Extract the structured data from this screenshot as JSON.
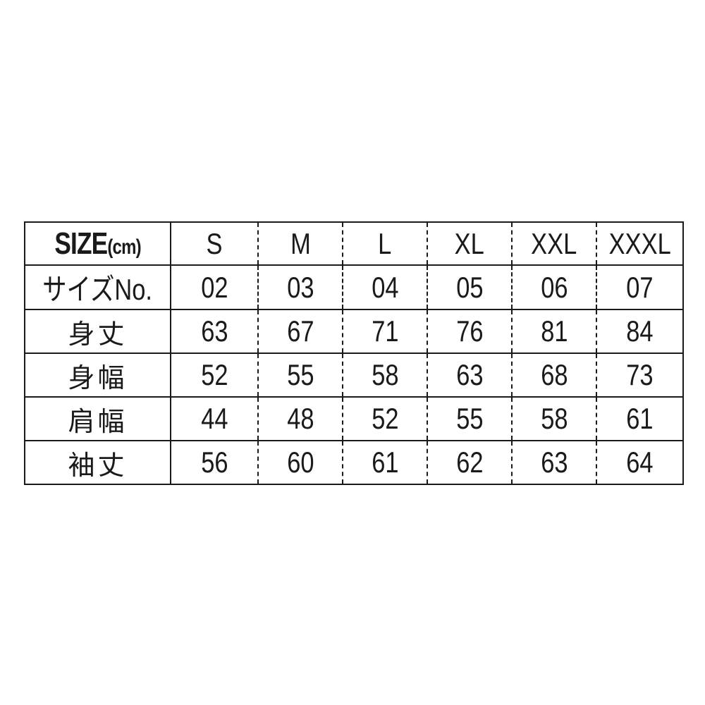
{
  "header": {
    "label_main": "SIZE",
    "label_unit": "(cm)",
    "sizes": [
      "S",
      "M",
      "L",
      "XL",
      "XXL",
      "XXXL"
    ]
  },
  "rows": [
    {
      "label": "サイズNo.",
      "values": [
        "02",
        "03",
        "04",
        "05",
        "06",
        "07"
      ]
    },
    {
      "label": "身丈",
      "values": [
        "63",
        "67",
        "71",
        "76",
        "81",
        "84"
      ]
    },
    {
      "label": "身幅",
      "values": [
        "52",
        "55",
        "58",
        "63",
        "68",
        "73"
      ]
    },
    {
      "label": "肩幅",
      "values": [
        "44",
        "48",
        "52",
        "55",
        "58",
        "61"
      ]
    },
    {
      "label": "袖丈",
      "values": [
        "56",
        "60",
        "61",
        "62",
        "63",
        "64"
      ]
    }
  ]
}
